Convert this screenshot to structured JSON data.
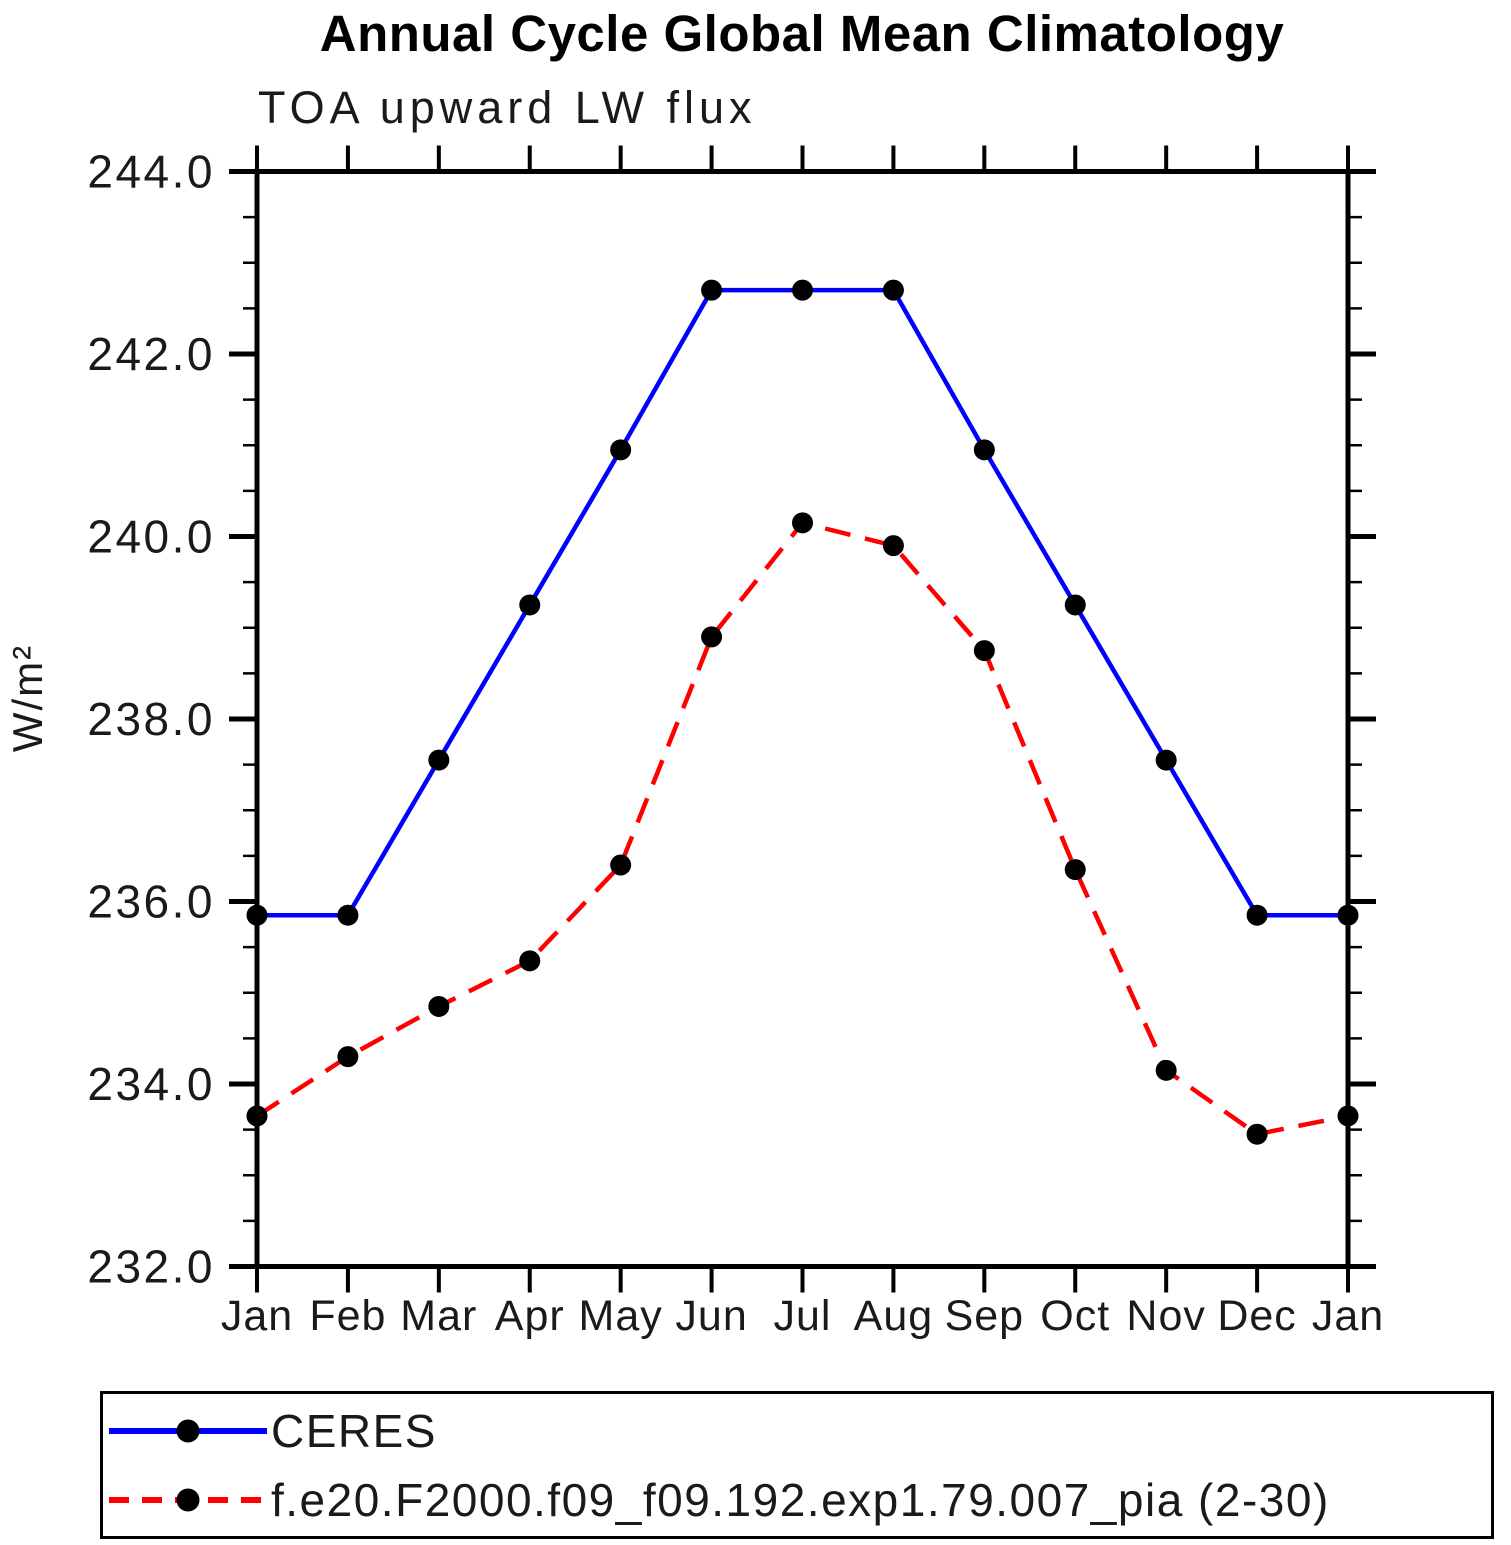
{
  "chart_data": {
    "type": "line",
    "title": "Annual Cycle Global Mean Climatology",
    "subtitle": "TOA upward LW flux",
    "ylabel": "W/m²",
    "xlabel": "",
    "x_categories": [
      "Jan",
      "Feb",
      "Mar",
      "Apr",
      "May",
      "Jun",
      "Jul",
      "Aug",
      "Sep",
      "Oct",
      "Nov",
      "Dec",
      "Jan"
    ],
    "ylim": [
      232.0,
      244.0
    ],
    "y_major_ticks": [
      232.0,
      234.0,
      236.0,
      238.0,
      240.0,
      242.0,
      244.0
    ],
    "y_tick_labels": [
      "232.0",
      "234.0",
      "236.0",
      "238.0",
      "240.0",
      "242.0",
      "244.0"
    ],
    "y_minor_step": 0.5,
    "grid": "off",
    "legend_position": "bottom-left-box",
    "axis_color": "#000000",
    "label_color": "#1a1a1a",
    "marker_color": "#000000",
    "series": [
      {
        "name": "CERES",
        "color": "#0000ff",
        "line_style": "solid",
        "marker": "filled-circle",
        "values": [
          235.85,
          235.85,
          237.55,
          239.25,
          240.95,
          242.7,
          242.7,
          242.7,
          240.95,
          239.25,
          237.55,
          235.85,
          235.85
        ]
      },
      {
        "name": "f.e20.F2000.f09_f09.192.exp1.79.007_pia (2-30)",
        "color": "#ff0000",
        "line_style": "dashed",
        "marker": "filled-circle",
        "values": [
          233.65,
          234.3,
          234.85,
          235.35,
          236.4,
          238.9,
          240.15,
          239.9,
          238.75,
          236.35,
          234.15,
          233.45,
          233.65
        ]
      }
    ]
  }
}
